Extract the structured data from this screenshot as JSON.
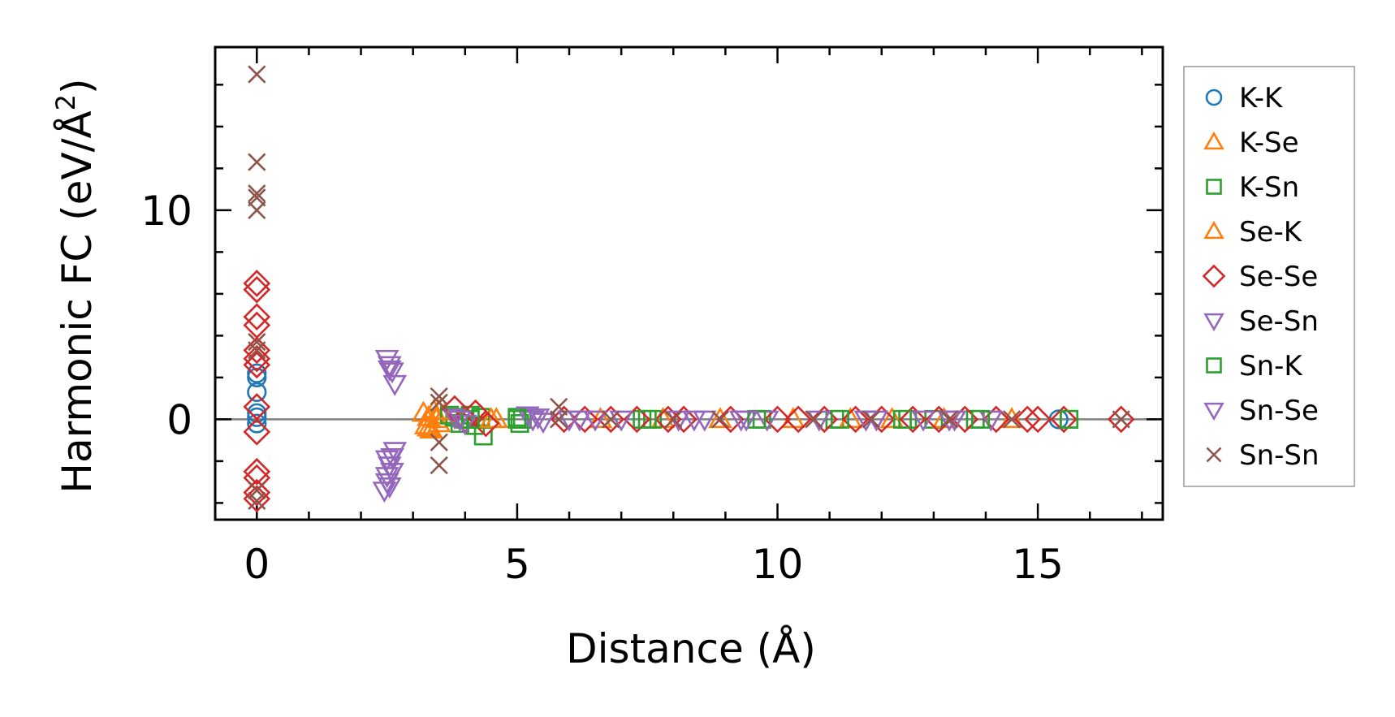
{
  "chart_data": {
    "type": "scatter",
    "title": "",
    "xlabel": "Distance (Å)",
    "ylabel_main": "Harmonic FC (eV/Å",
    "ylabel_sup": "2",
    "ylabel_close": ")",
    "xlim": [
      -0.8,
      17.4
    ],
    "ylim": [
      -4.8,
      17.8
    ],
    "xticks": [
      0,
      5,
      10,
      15
    ],
    "xtick_labels": [
      "0",
      "5",
      "10",
      "15"
    ],
    "yticks": [
      0,
      10
    ],
    "ytick_labels": [
      "0",
      "10"
    ],
    "grid": false,
    "zero_line": true,
    "legend_position": "outside-right",
    "series": [
      {
        "name": "K-K",
        "marker": "circle",
        "color": "#1f77b4",
        "points": [
          [
            0,
            2.2
          ],
          [
            0,
            2.0
          ],
          [
            0,
            1.3
          ],
          [
            0,
            0.3
          ],
          [
            0,
            0.1
          ],
          [
            0,
            -0.2
          ],
          [
            15.4,
            0
          ]
        ]
      },
      {
        "name": "K-Se",
        "marker": "triangle-up",
        "color": "#ff7f0e",
        "points": [
          [
            3.2,
            0.3
          ],
          [
            3.3,
            0.1
          ],
          [
            3.25,
            -0.3
          ],
          [
            3.35,
            -0.5
          ],
          [
            3.4,
            0.4
          ],
          [
            3.45,
            0
          ],
          [
            3.5,
            -0.2
          ],
          [
            3.6,
            0.2
          ],
          [
            7.8,
            0
          ],
          [
            10.3,
            0
          ],
          [
            12.2,
            0
          ],
          [
            14.5,
            0
          ]
        ]
      },
      {
        "name": "K-Sn",
        "marker": "square",
        "color": "#2ca02c",
        "points": [
          [
            3.7,
            0.2
          ],
          [
            3.8,
            0.1
          ],
          [
            3.9,
            -0.2
          ],
          [
            4.0,
            0
          ],
          [
            4.1,
            0.2
          ],
          [
            4.2,
            -0.3
          ],
          [
            4.3,
            0.1
          ],
          [
            4.35,
            -0.8
          ],
          [
            5.0,
            0.1
          ],
          [
            5.05,
            -0.2
          ],
          [
            5.1,
            0
          ],
          [
            7.4,
            0
          ],
          [
            7.6,
            0
          ],
          [
            9.7,
            0
          ],
          [
            11.1,
            0
          ],
          [
            12.5,
            0
          ],
          [
            13.0,
            0
          ],
          [
            13.8,
            0
          ],
          [
            15.6,
            0
          ]
        ]
      },
      {
        "name": "Se-K",
        "marker": "triangle-up",
        "color": "#ff7f0e",
        "points": [
          [
            3.3,
            -0.4
          ],
          [
            3.5,
            0.4
          ],
          [
            4.5,
            0
          ],
          [
            4.6,
            0
          ],
          [
            6.6,
            0
          ],
          [
            8.9,
            0
          ],
          [
            11.4,
            0
          ],
          [
            13.2,
            0
          ]
        ]
      },
      {
        "name": "Se-Se",
        "marker": "diamond",
        "color": "#d62728",
        "points": [
          [
            0,
            6.5
          ],
          [
            0,
            6.2
          ],
          [
            0,
            4.9
          ],
          [
            0,
            4.5
          ],
          [
            0,
            3.3
          ],
          [
            0,
            2.9
          ],
          [
            0,
            2.6
          ],
          [
            0,
            0.6
          ],
          [
            0,
            -0.6
          ],
          [
            0,
            -2.5
          ],
          [
            0,
            -2.8
          ],
          [
            0,
            -3.5
          ],
          [
            0,
            -3.8
          ],
          [
            3.8,
            0.5
          ],
          [
            4.0,
            0
          ],
          [
            4.2,
            0.3
          ],
          [
            4.4,
            -0.2
          ],
          [
            5.9,
            0
          ],
          [
            6.3,
            0
          ],
          [
            6.8,
            0
          ],
          [
            7.3,
            0
          ],
          [
            7.9,
            0
          ],
          [
            8.2,
            0
          ],
          [
            9.1,
            0
          ],
          [
            10.0,
            0
          ],
          [
            10.4,
            0
          ],
          [
            10.9,
            0
          ],
          [
            11.5,
            0
          ],
          [
            12.0,
            0
          ],
          [
            12.6,
            0
          ],
          [
            13.1,
            0
          ],
          [
            13.6,
            0
          ],
          [
            14.2,
            0
          ],
          [
            14.8,
            0
          ],
          [
            15.0,
            0
          ],
          [
            15.5,
            0
          ],
          [
            16.6,
            0
          ]
        ]
      },
      {
        "name": "Se-Sn",
        "marker": "triangle-down",
        "color": "#9467bd",
        "points": [
          [
            2.5,
            2.9
          ],
          [
            2.55,
            2.6
          ],
          [
            2.6,
            2.3
          ],
          [
            2.65,
            1.7
          ],
          [
            2.5,
            -1.9
          ],
          [
            2.55,
            -2.2
          ],
          [
            2.6,
            -2.5
          ],
          [
            2.65,
            -1.5
          ],
          [
            2.45,
            -3.4
          ],
          [
            2.5,
            -3.0
          ],
          [
            3.8,
            0.1
          ],
          [
            4.0,
            -0.2
          ],
          [
            5.2,
            0.2
          ],
          [
            5.3,
            0
          ],
          [
            5.5,
            -0.1
          ],
          [
            6.0,
            0
          ],
          [
            6.5,
            0
          ],
          [
            7.0,
            0
          ],
          [
            8.1,
            0
          ],
          [
            8.6,
            0
          ],
          [
            9.3,
            0
          ],
          [
            9.8,
            0
          ],
          [
            10.8,
            0
          ],
          [
            11.7,
            0
          ],
          [
            12.8,
            0
          ],
          [
            13.4,
            0
          ],
          [
            14.1,
            0
          ]
        ]
      },
      {
        "name": "Sn-K",
        "marker": "square",
        "color": "#2ca02c",
        "points": [
          [
            4.1,
            0
          ],
          [
            5.0,
            0
          ],
          [
            7.5,
            0
          ],
          [
            9.6,
            0
          ],
          [
            11.2,
            0
          ],
          [
            12.4,
            0
          ],
          [
            13.9,
            0
          ],
          [
            15.6,
            0
          ]
        ]
      },
      {
        "name": "Sn-Se",
        "marker": "triangle-down",
        "color": "#9467bd",
        "points": [
          [
            2.55,
            2.4
          ],
          [
            2.5,
            -2.7
          ],
          [
            2.6,
            -1.8
          ],
          [
            2.55,
            -3.2
          ],
          [
            3.9,
            0
          ],
          [
            5.4,
            0.1
          ],
          [
            6.2,
            0
          ],
          [
            8.4,
            0
          ],
          [
            9.4,
            0
          ],
          [
            11.9,
            0
          ],
          [
            13.3,
            0
          ]
        ]
      },
      {
        "name": "Sn-Sn",
        "marker": "x",
        "color": "#8c564b",
        "points": [
          [
            0,
            16.5
          ],
          [
            0,
            12.3
          ],
          [
            0,
            10.8
          ],
          [
            0,
            10.6
          ],
          [
            0,
            10.0
          ],
          [
            0,
            3.7
          ],
          [
            0,
            3.3
          ],
          [
            0,
            -3.4
          ],
          [
            0,
            -3.9
          ],
          [
            3.5,
            1.1
          ],
          [
            3.5,
            0.8
          ],
          [
            3.5,
            -1.1
          ],
          [
            3.5,
            -2.2
          ],
          [
            5.8,
            0.6
          ],
          [
            5.8,
            0
          ],
          [
            6.8,
            0
          ],
          [
            8.0,
            0
          ],
          [
            8.9,
            0
          ],
          [
            10.7,
            0
          ],
          [
            11.8,
            0
          ],
          [
            13.3,
            0
          ],
          [
            14.5,
            0
          ],
          [
            16.6,
            0
          ]
        ]
      }
    ]
  }
}
